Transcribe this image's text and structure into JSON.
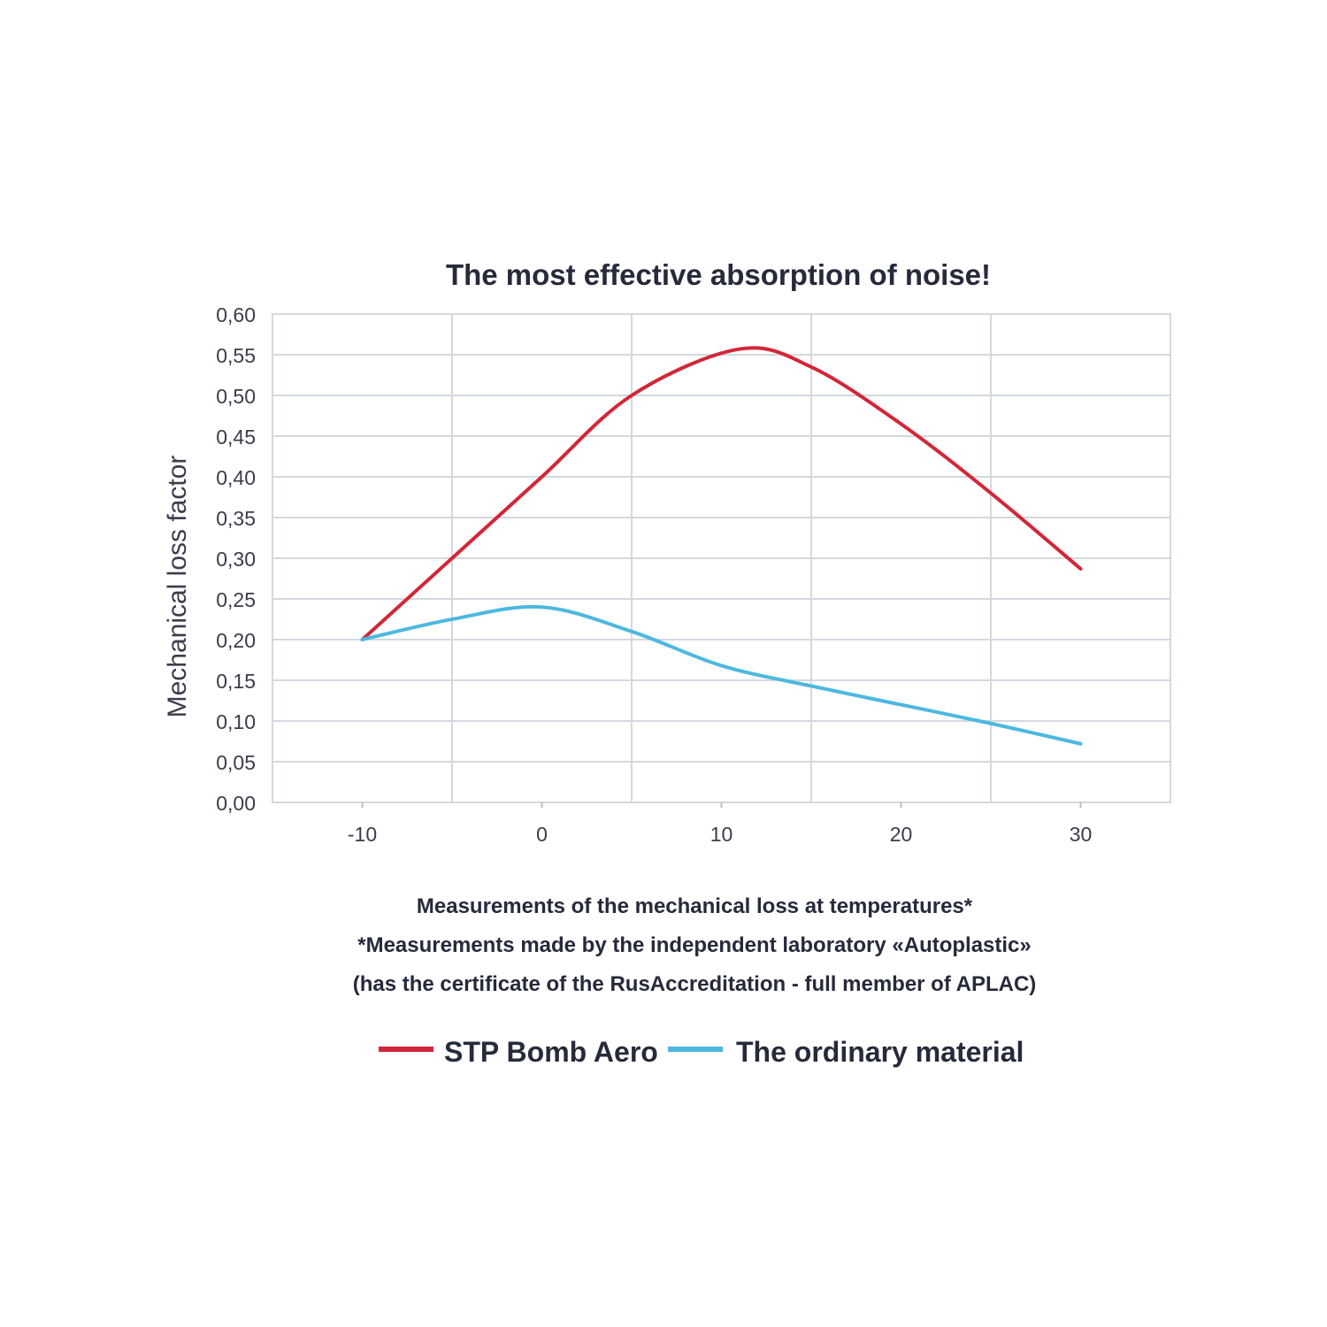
{
  "chart_data": {
    "type": "line",
    "title": "The most effective absorption of noise!",
    "ylabel": "Mechanical loss factor",
    "xlabel_lines": [
      "Measurements of the mechanical loss at temperatures*",
      "*Measurements made by the independent laboratory «Autoplastic»",
      "(has the certificate of the RusAccreditation - full member of APLAC)"
    ],
    "xlim": [
      -15,
      35
    ],
    "ylim": [
      0,
      0.6
    ],
    "x_ticks": [
      -10,
      0,
      10,
      20,
      30
    ],
    "x_tick_labels": [
      "-10",
      "0",
      "10",
      "20",
      "30"
    ],
    "y_ticks": [
      0,
      0.05,
      0.1,
      0.15,
      0.2,
      0.25,
      0.3,
      0.35,
      0.4,
      0.45,
      0.5,
      0.55,
      0.6
    ],
    "y_tick_labels": [
      "0,00",
      "0,05",
      "0,10",
      "0,15",
      "0,20",
      "0,25",
      "0,30",
      "0,35",
      "0,40",
      "0,45",
      "0,50",
      "0,55",
      "0,60"
    ],
    "grid": true,
    "legend_position": "bottom",
    "series": [
      {
        "name": "STP Bomb Aero",
        "color": "#d32638",
        "x": [
          -10,
          -5,
          0,
          5,
          11,
          15,
          20,
          25,
          30
        ],
        "y": [
          0.2,
          0.3,
          0.4,
          0.5,
          0.557,
          0.535,
          0.465,
          0.38,
          0.287
        ]
      },
      {
        "name": "The ordinary material",
        "color": "#4db8e0",
        "x": [
          -10,
          -5,
          0,
          5,
          10,
          15,
          20,
          25,
          30
        ],
        "y": [
          0.2,
          0.225,
          0.24,
          0.21,
          0.168,
          0.143,
          0.12,
          0.097,
          0.072
        ]
      }
    ]
  }
}
